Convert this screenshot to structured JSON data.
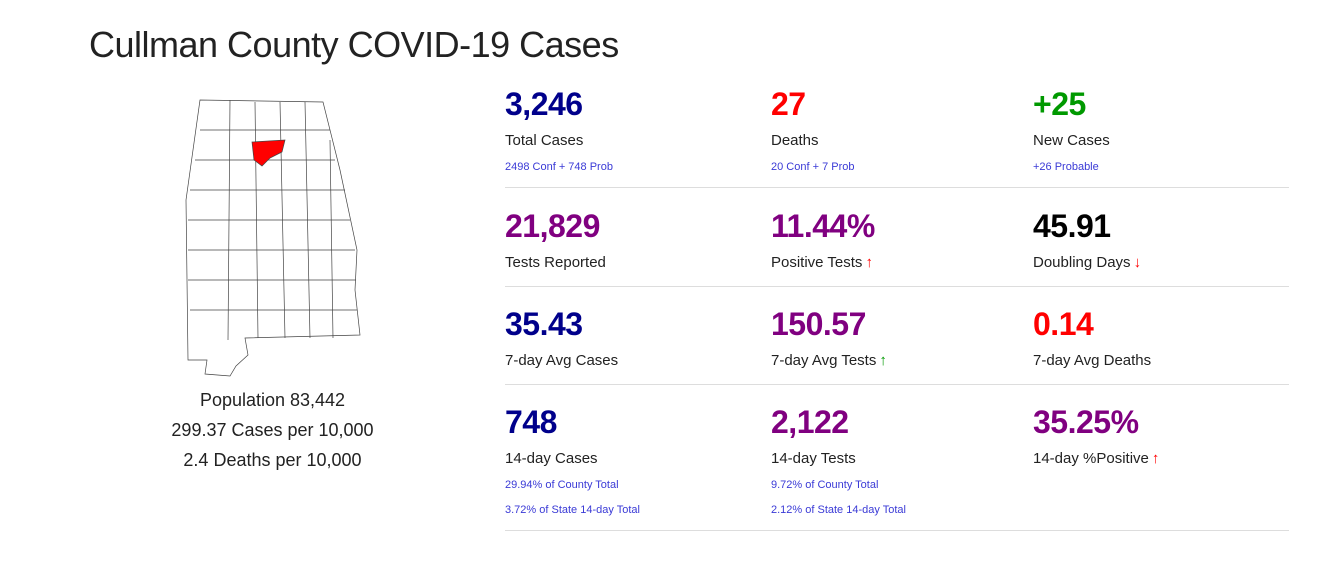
{
  "title": "Cullman County COVID-19 Cases",
  "colors": {
    "navy": "#00008b",
    "red": "#ff0000",
    "green": "#009900",
    "purple": "#800080",
    "black": "#000000",
    "link": "#3a3ad6"
  },
  "county_info": {
    "population": "Population 83,442",
    "cases_per": "299.37 Cases per 10,000",
    "deaths_per": "2.4 Deaths per 10,000"
  },
  "stats": [
    {
      "value": "3,246",
      "label": "Total Cases",
      "subs": [
        "2498 Conf + 748 Prob"
      ],
      "color": "#00008b"
    },
    {
      "value": "27",
      "label": "Deaths",
      "subs": [
        "20 Conf + 7 Prob"
      ],
      "color": "#ff0000"
    },
    {
      "value": "+25",
      "label": "New Cases",
      "subs": [
        "+26 Probable"
      ],
      "color": "#009900"
    },
    {
      "value": "21,829",
      "label": "Tests Reported",
      "color": "#800080"
    },
    {
      "value": "11.44%",
      "label": "Positive Tests",
      "arrow": "↑",
      "arrow_color": "#ff0000",
      "color": "#800080"
    },
    {
      "value": "45.91",
      "label": "Doubling Days",
      "arrow": "↓",
      "arrow_color": "#ff0000",
      "color": "#000000"
    },
    {
      "value": "35.43",
      "label": "7-day Avg Cases",
      "color": "#00008b"
    },
    {
      "value": "150.57",
      "label": "7-day Avg Tests",
      "arrow": "↑",
      "arrow_color": "#009900",
      "color": "#800080"
    },
    {
      "value": "0.14",
      "label": "7-day Avg Deaths",
      "color": "#ff0000"
    },
    {
      "value": "748",
      "label": "14-day Cases",
      "subs": [
        "29.94% of County Total",
        "3.72% of State 14-day Total"
      ],
      "color": "#00008b"
    },
    {
      "value": "2,122",
      "label": "14-day Tests",
      "subs": [
        "9.72% of County Total",
        "2.12% of State 14-day Total"
      ],
      "color": "#800080"
    },
    {
      "value": "35.25%",
      "label": "14-day %Positive",
      "arrow": "↑",
      "arrow_color": "#ff0000",
      "color": "#800080"
    }
  ]
}
